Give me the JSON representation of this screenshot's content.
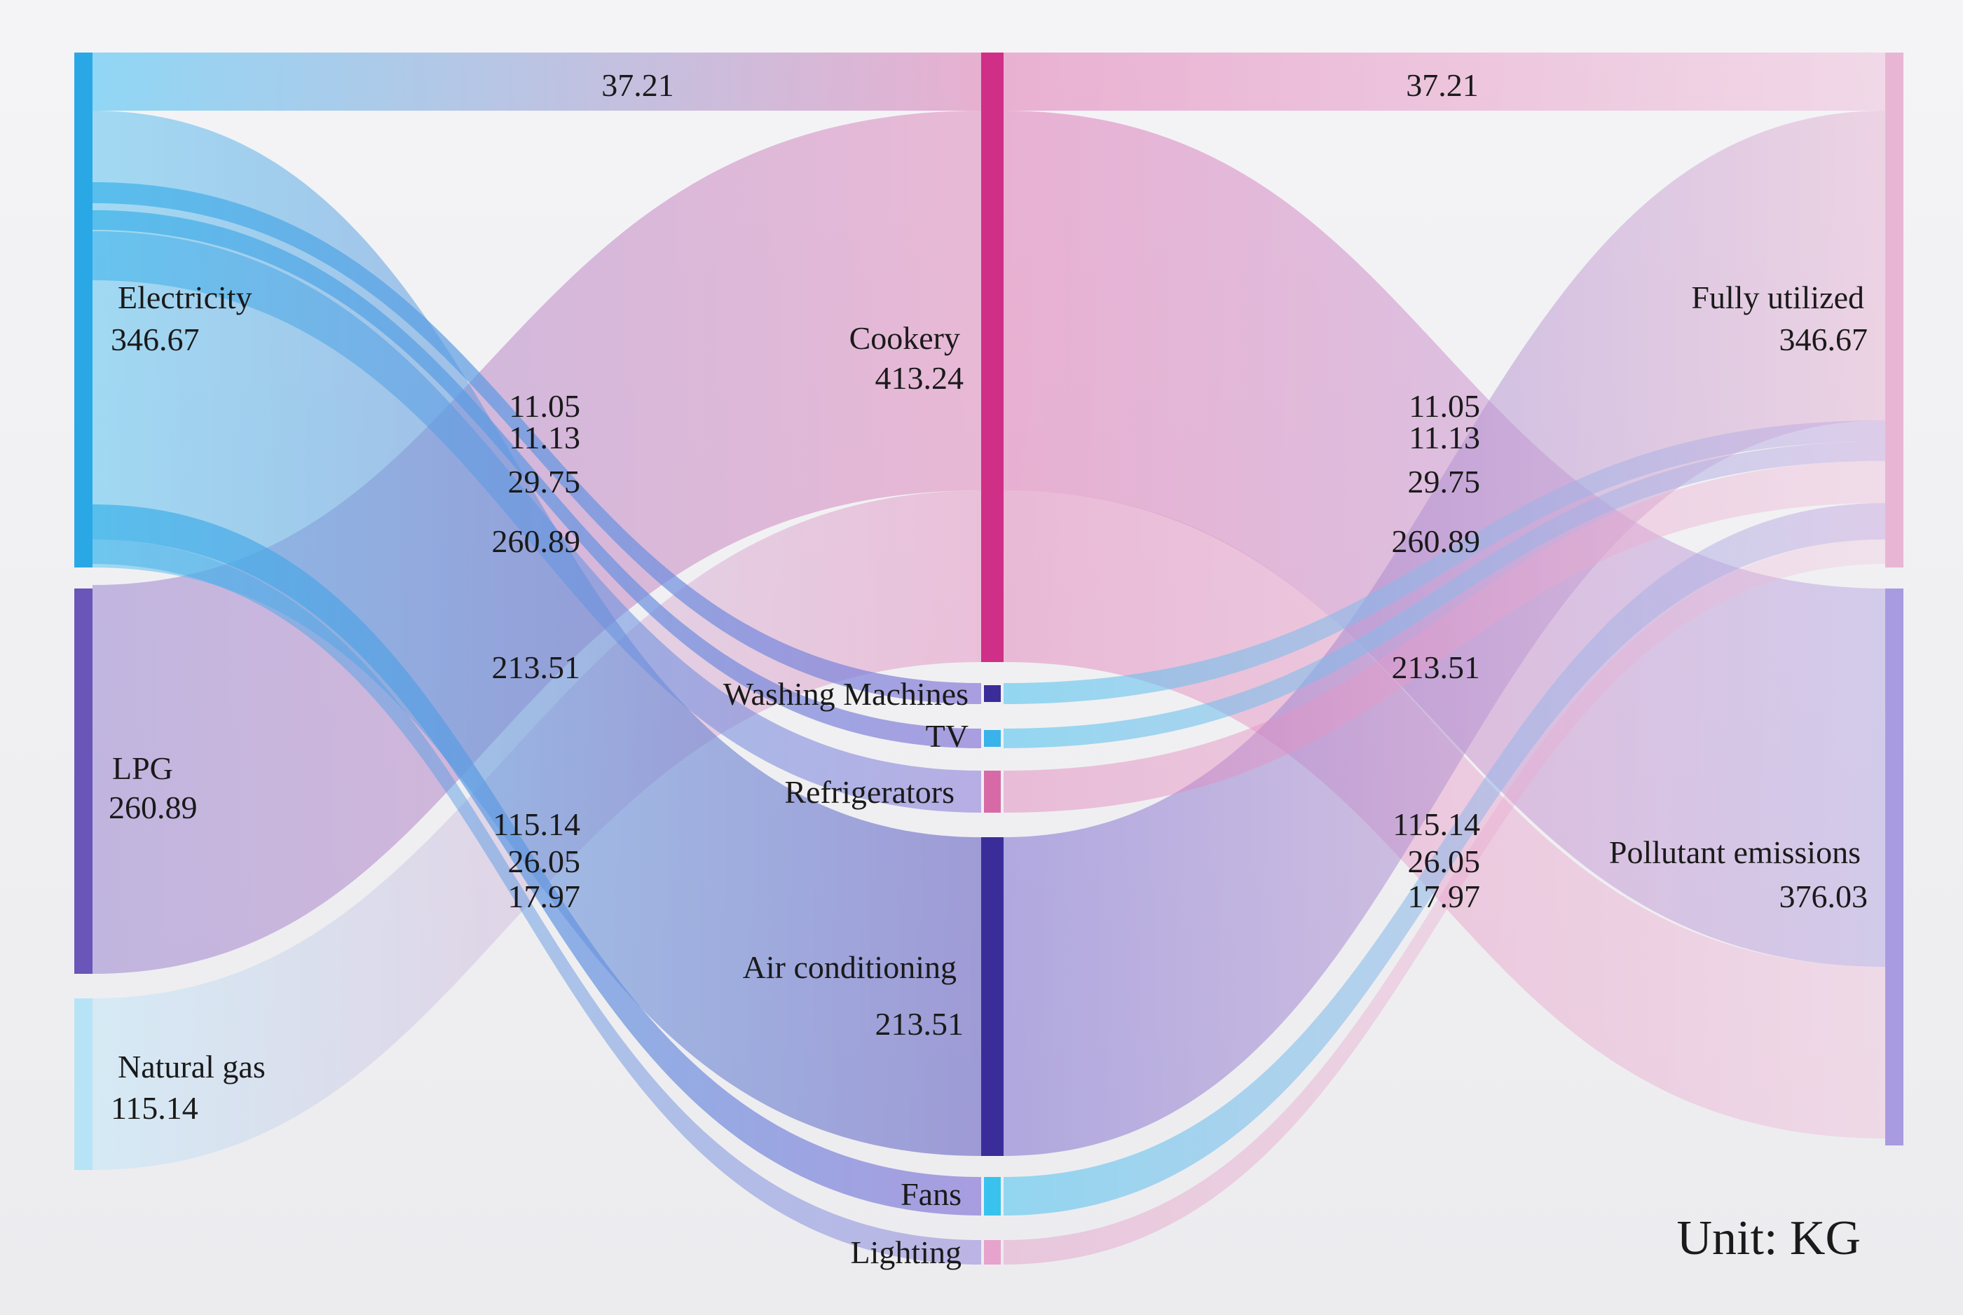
{
  "unit_label": "Unit: KG",
  "colors": {
    "electricity": "#2aa8e6",
    "lpg": "#6a55b8",
    "natural_gas": "#b7e3f7",
    "cookery": "#cf2f86",
    "washing_machines": "#3a2d9a",
    "tv": "#39b3ea",
    "refrigerators": "#d76aa6",
    "air_conditioning": "#3a2d9a",
    "fans": "#39c2ee",
    "lighting": "#e7a3cc",
    "fully_utilized": "#e8b6d4",
    "pollutant_emissions": "#a89be0"
  },
  "sources": [
    {
      "key": "electricity",
      "name": "Electricity",
      "value": "346.67"
    },
    {
      "key": "lpg",
      "name": "LPG",
      "value": "260.89"
    },
    {
      "key": "natural_gas",
      "name": "Natural gas",
      "value": "115.14"
    }
  ],
  "appliances": [
    {
      "key": "cookery",
      "name": "Cookery",
      "value": "413.24"
    },
    {
      "key": "washing_machines",
      "name": "Washing Machines",
      "value": ""
    },
    {
      "key": "tv",
      "name": "TV",
      "value": ""
    },
    {
      "key": "refrigerators",
      "name": "Refrigerators",
      "value": ""
    },
    {
      "key": "air_conditioning",
      "name": "Air conditioning",
      "value": "213.51"
    },
    {
      "key": "fans",
      "name": "Fans",
      "value": ""
    },
    {
      "key": "lighting",
      "name": "Lighting",
      "value": ""
    }
  ],
  "outcomes": [
    {
      "key": "fully_utilized",
      "name": "Fully utilized",
      "value": "346.67"
    },
    {
      "key": "pollutant_emissions",
      "name": "Pollutant emissions",
      "value": "376.03"
    }
  ],
  "left_flow_labels": [
    "37.21",
    "11.05",
    "11.13",
    "29.75",
    "260.89",
    "213.51",
    "115.14",
    "26.05",
    "17.97"
  ],
  "right_flow_labels": [
    "37.21",
    "11.05",
    "11.13",
    "29.75",
    "260.89",
    "213.51",
    "115.14",
    "26.05",
    "17.97"
  ],
  "flows_left": [
    {
      "source": "electricity",
      "target": "cookery",
      "value": 37.21
    },
    {
      "source": "electricity",
      "target": "washing_machines",
      "value": 11.05
    },
    {
      "source": "electricity",
      "target": "tv",
      "value": 11.13
    },
    {
      "source": "electricity",
      "target": "refrigerators",
      "value": 29.75
    },
    {
      "source": "electricity",
      "target": "air_conditioning",
      "value": 213.51
    },
    {
      "source": "electricity",
      "target": "fans",
      "value": 26.05
    },
    {
      "source": "electricity",
      "target": "lighting",
      "value": 17.97
    },
    {
      "source": "lpg",
      "target": "cookery",
      "value": 260.89
    },
    {
      "source": "natural_gas",
      "target": "cookery",
      "value": 115.14
    }
  ],
  "flows_right": [
    {
      "source": "cookery",
      "target": "fully_utilized",
      "value": 37.21
    },
    {
      "source": "washing_machines",
      "target": "fully_utilized",
      "value": 11.05
    },
    {
      "source": "tv",
      "target": "fully_utilized",
      "value": 11.13
    },
    {
      "source": "refrigerators",
      "target": "fully_utilized",
      "value": 29.75
    },
    {
      "source": "air_conditioning",
      "target": "fully_utilized",
      "value": 213.51
    },
    {
      "source": "fans",
      "target": "fully_utilized",
      "value": 26.05
    },
    {
      "source": "lighting",
      "target": "fully_utilized",
      "value": 17.97
    },
    {
      "source": "cookery",
      "target": "pollutant_emissions",
      "value": 260.89
    },
    {
      "source": "cookery",
      "target": "pollutant_emissions",
      "value": 115.14
    }
  ]
}
